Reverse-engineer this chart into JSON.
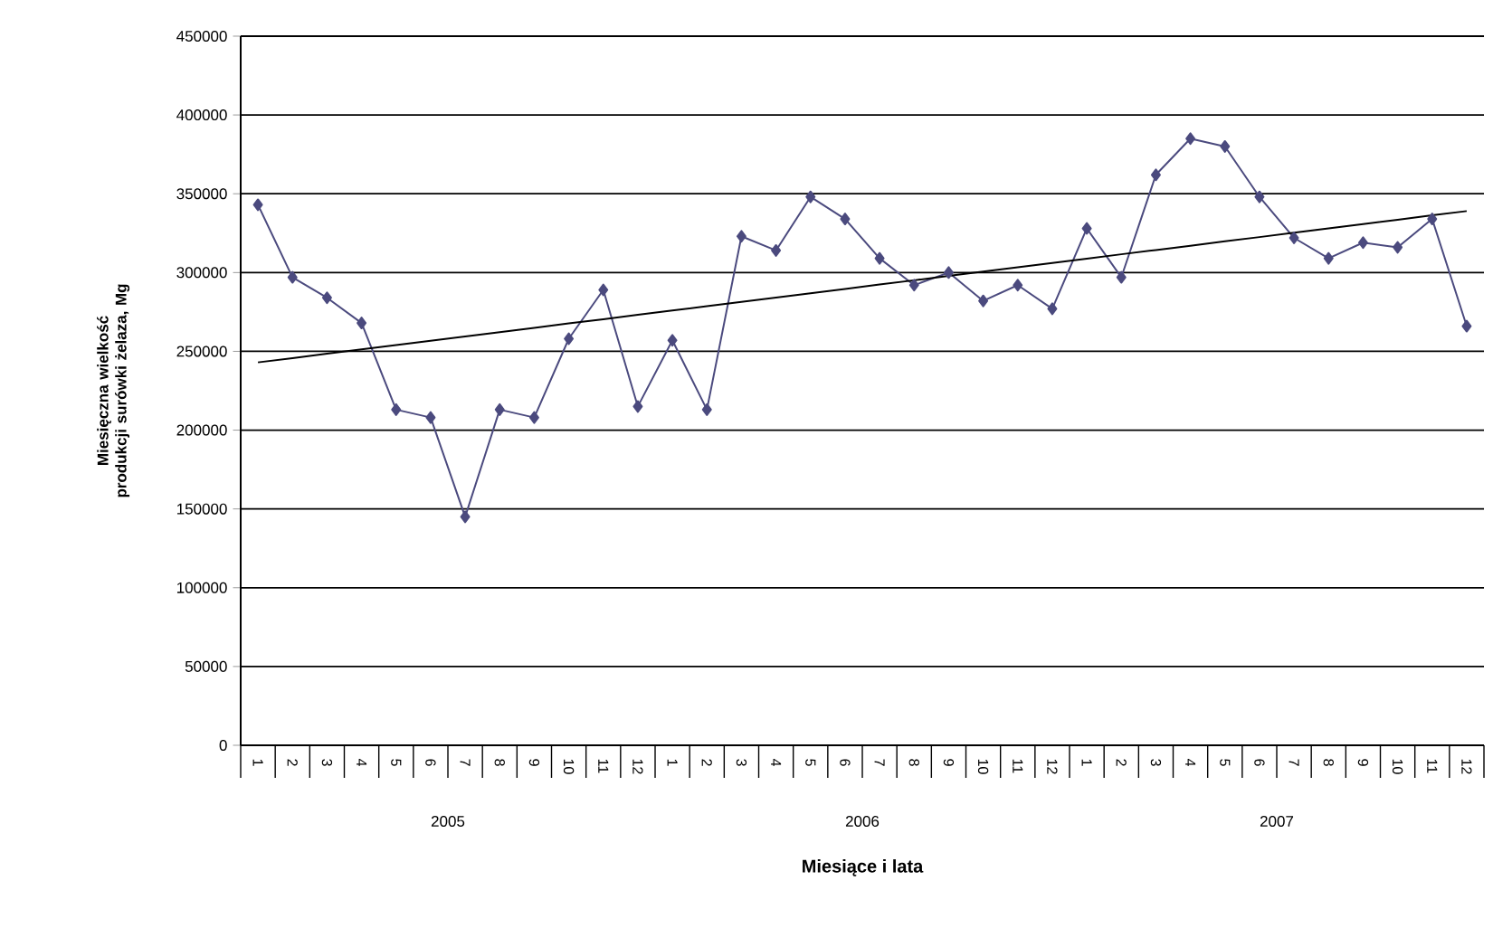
{
  "chart_data": {
    "type": "line",
    "xlabel": "Miesiące i lata",
    "ylabel": "Miesięczna wielkość produkcji surówki żelaza, Mg",
    "categories": [
      "1",
      "2",
      "3",
      "4",
      "5",
      "6",
      "7",
      "8",
      "9",
      "10",
      "11",
      "12",
      "1",
      "2",
      "3",
      "4",
      "5",
      "6",
      "7",
      "8",
      "9",
      "10",
      "11",
      "12",
      "1",
      "2",
      "3",
      "4",
      "5",
      "6",
      "7",
      "8",
      "9",
      "10",
      "11",
      "12"
    ],
    "series": [
      {
        "color": "#4b4a7e",
        "marker": "diamond",
        "values": [
          343000,
          297000,
          284000,
          268000,
          213000,
          208000,
          145000,
          213000,
          208000,
          258000,
          289000,
          215000,
          257000,
          213000,
          323000,
          314000,
          348000,
          334000,
          309000,
          292000,
          300000,
          282000,
          292000,
          277000,
          328000,
          297000,
          362000,
          385000,
          380000,
          348000,
          322000,
          309000,
          319000,
          316000,
          334000,
          266000
        ]
      },
      {
        "color": "#000000",
        "marker": "none",
        "values": [
          243000,
          245700,
          248500,
          251200,
          254000,
          256700,
          259500,
          262200,
          264900,
          267700,
          270400,
          273200,
          275900,
          278700,
          281400,
          284100,
          286900,
          289600,
          292400,
          295100,
          297900,
          300600,
          303300,
          306100,
          308800,
          311600,
          314300,
          317000,
          319800,
          322500,
          325300,
          328000,
          330800,
          333500,
          336300,
          339000
        ]
      }
    ],
    "ylim": [
      0,
      450000
    ],
    "yticks": [
      0,
      50000,
      100000,
      150000,
      200000,
      250000,
      300000,
      350000,
      400000,
      450000
    ],
    "grid": "y",
    "annotations": [
      "2005",
      "2006",
      "2007"
    ]
  }
}
